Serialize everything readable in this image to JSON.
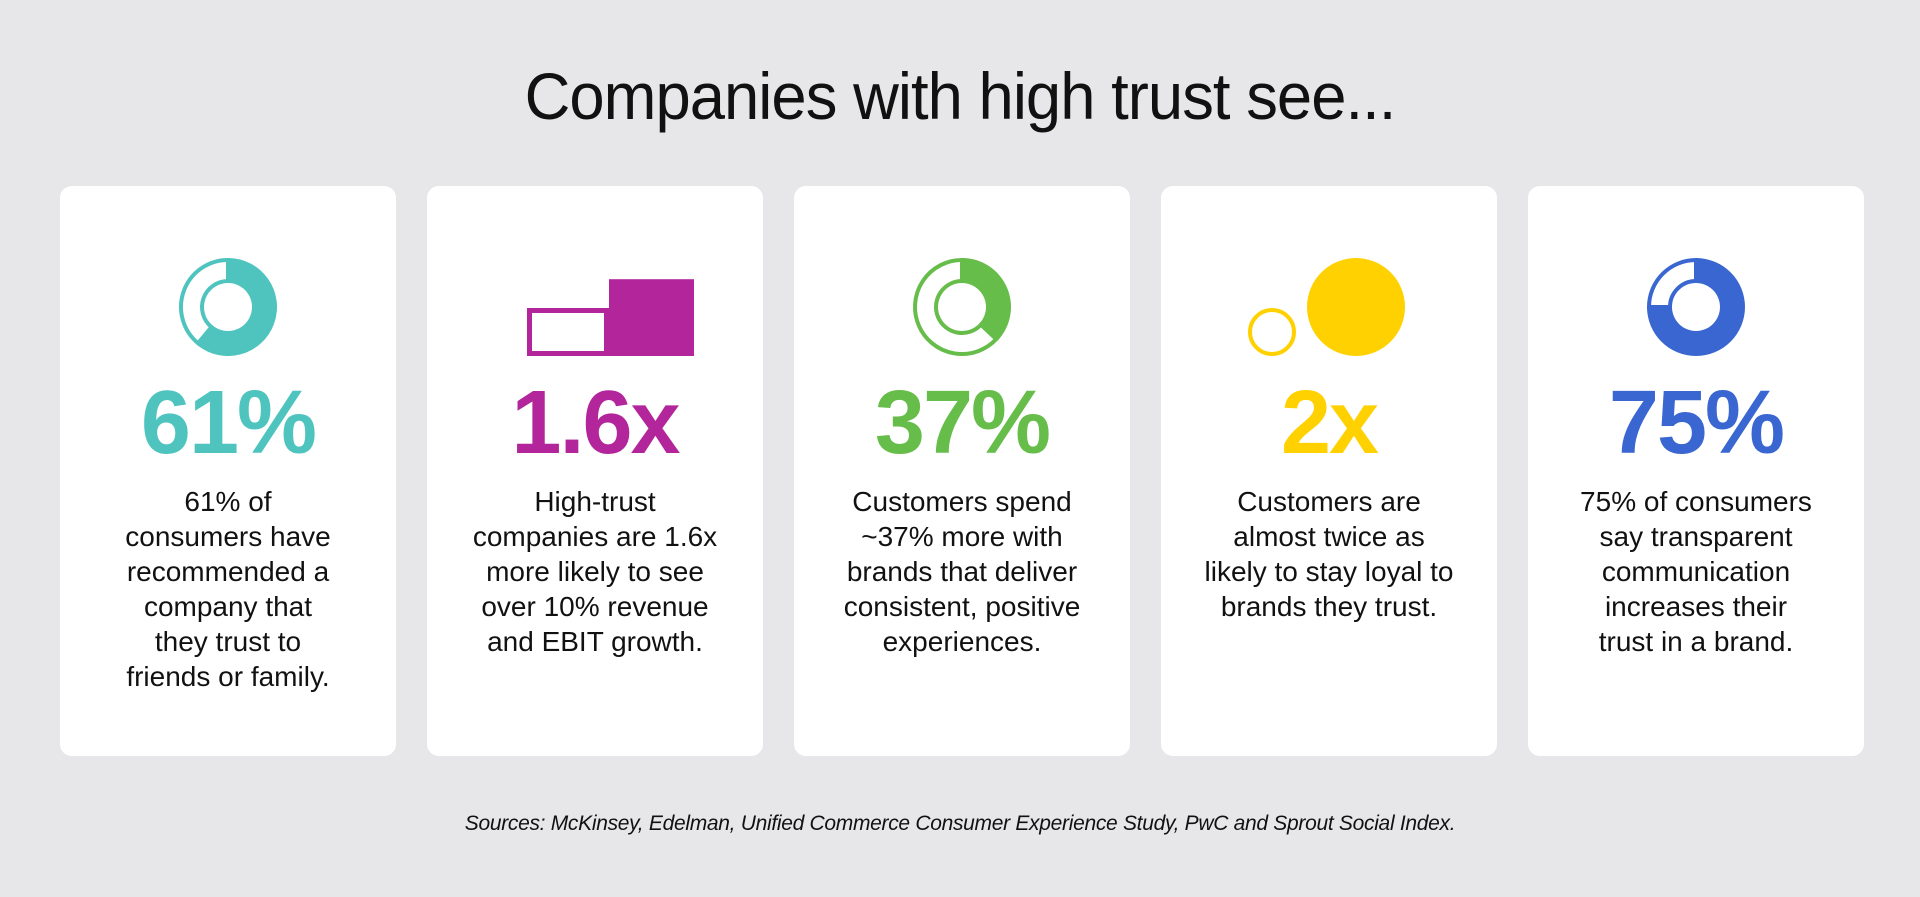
{
  "title": "Companies with high trust see...",
  "cards": [
    {
      "stat": "61%",
      "color": "#4fc4bf",
      "icon": {
        "name": "donut-chart-icon",
        "type": "donut",
        "value": 61
      },
      "lines": [
        "61% of",
        "consumers have",
        "recommended a",
        "company that",
        "they trust to",
        "friends or family."
      ]
    },
    {
      "stat": "1.6x",
      "color": "#b3259a",
      "icon": {
        "name": "bar-comparison-icon",
        "type": "bars",
        "value": 1.6
      },
      "lines": [
        "High-trust",
        "companies are 1.6x",
        "more likely to see",
        "over 10% revenue",
        "and EBIT growth."
      ]
    },
    {
      "stat": "37%",
      "color": "#66bd4a",
      "icon": {
        "name": "donut-chart-icon",
        "type": "donut",
        "value": 37
      },
      "lines": [
        "Customers spend",
        "~37% more with",
        "brands that deliver",
        "consistent, positive",
        "experiences."
      ]
    },
    {
      "stat": "2x",
      "color": "#ffd100",
      "icon": {
        "name": "circle-comparison-icon",
        "type": "circles",
        "value": 2
      },
      "lines": [
        "Customers are",
        "almost twice as",
        "likely to stay loyal to",
        "brands they trust."
      ]
    },
    {
      "stat": "75%",
      "color": "#3a66d1",
      "icon": {
        "name": "donut-chart-icon",
        "type": "donut",
        "value": 75
      },
      "lines": [
        "75% of consumers",
        "say transparent",
        "communication",
        "increases their",
        "trust in a brand."
      ]
    }
  ],
  "sources": "Sources: McKinsey, Edelman, Unified Commerce Consumer Experience Study, PwC and Sprout Social Index."
}
